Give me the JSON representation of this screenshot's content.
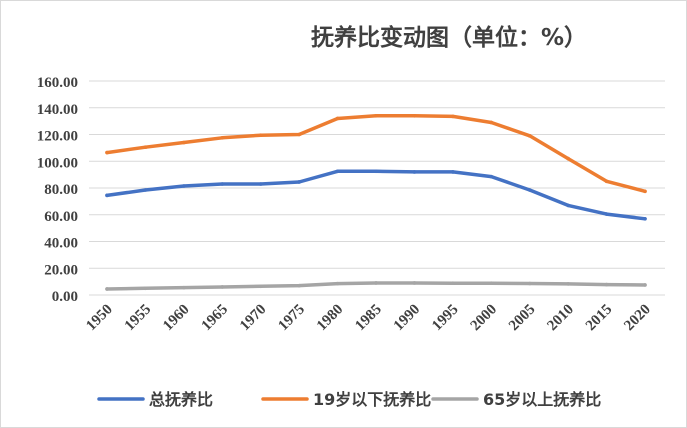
{
  "chart_data": {
    "type": "line",
    "title": "抚养比变动图（单位：%）",
    "categories": [
      "1950",
      "1955",
      "1960",
      "1965",
      "1970",
      "1975",
      "1980",
      "1985",
      "1990",
      "1995",
      "2000",
      "2005",
      "2010",
      "2015",
      "2020"
    ],
    "series": [
      {
        "name": "总抚养比",
        "color": "#4472c4",
        "values": [
          74.5,
          78.5,
          81.5,
          83,
          83,
          84.5,
          92.5,
          92.5,
          92,
          92,
          88.5,
          78.5,
          67,
          60.5,
          57
        ]
      },
      {
        "name": "19岁以下抚养比",
        "color": "#ed7d31",
        "values": [
          106.5,
          110.5,
          114,
          117.5,
          119.5,
          120,
          132,
          134,
          134,
          133.5,
          129,
          119,
          102,
          85,
          77.5
        ]
      },
      {
        "name": "65岁以上抚养比",
        "color": "#a5a5a5",
        "values": [
          4.5,
          5,
          5.5,
          6,
          6.5,
          7,
          8.5,
          9,
          9,
          8.8,
          8.8,
          8.6,
          8.3,
          7.8,
          7.5
        ]
      }
    ],
    "ylim": [
      0,
      160
    ],
    "yticks": [
      "0.00",
      "20.00",
      "40.00",
      "60.00",
      "80.00",
      "100.00",
      "120.00",
      "140.00",
      "160.00"
    ],
    "grid": true,
    "legend": "bottom"
  }
}
